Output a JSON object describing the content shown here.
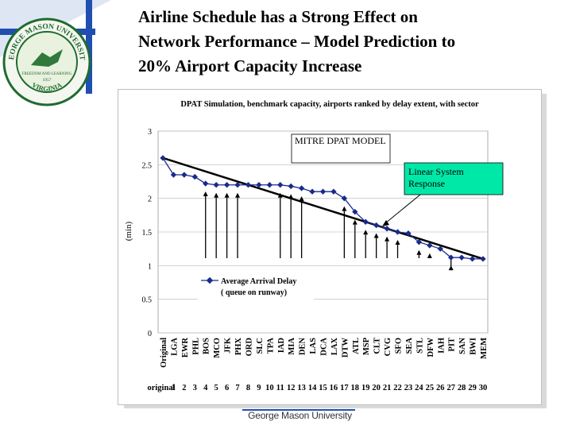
{
  "slide": {
    "title_line1": "Airline Schedule has a Strong Effect on",
    "title_line2": "Network Performance – Model Prediction to",
    "title_line3": "20% Airport Capacity Increase",
    "footer": "George Mason University"
  },
  "seal": {
    "top_text": "GEORGE MASON UNIVERSITY",
    "bottom_text": "VIRGINIA",
    "inner_text": "FREEDOM AND LEARNING",
    "year": "1957"
  },
  "colors": {
    "accent": "#1f4fb0",
    "series": "#1a2a8c",
    "callout_fill": "#00e8a8",
    "grid": "#c8c8c8"
  },
  "chart_data": {
    "type": "line",
    "title": "DPAT Simulation, benchmark capacity, airports ranked by delay extent, with sector",
    "ylabel": "(min)",
    "xlabel": "",
    "ylim": [
      0,
      3
    ],
    "yticks": [
      "0",
      "0.5",
      "1",
      "1.5",
      "2",
      "2.5",
      "3"
    ],
    "categories": [
      "Original",
      "LGA",
      "EWR",
      "PHL",
      "BOS",
      "MCO",
      "JFK",
      "PHX",
      "ORD",
      "SLC",
      "TPA",
      "IAD",
      "MIA",
      "DEN",
      "LAS",
      "DCA",
      "LAX",
      "DTW",
      "ATL",
      "MSP",
      "CLT",
      "CVG",
      "SFO",
      "SEA",
      "STL",
      "DFW",
      "IAH",
      "PIT",
      "SAN",
      "BWI",
      "MEM"
    ],
    "index_labels": [
      "original",
      "1",
      "2",
      "3",
      "4",
      "5",
      "6",
      "7",
      "8",
      "9",
      "10",
      "11",
      "12",
      "13",
      "14",
      "15",
      "16",
      "17",
      "18",
      "19",
      "20",
      "21",
      "22",
      "23",
      "24",
      "25",
      "26",
      "27",
      "28",
      "29",
      "30"
    ],
    "series": [
      {
        "name": "Average Arrival Delay ( queue on runway)",
        "legend_line1": "Average Arrival Delay",
        "legend_line2": "( queue on runway)",
        "values": [
          2.6,
          2.35,
          2.35,
          2.32,
          2.22,
          2.2,
          2.2,
          2.2,
          2.2,
          2.2,
          2.2,
          2.2,
          2.18,
          2.15,
          2.1,
          2.1,
          2.1,
          2.0,
          1.8,
          1.65,
          1.6,
          1.55,
          1.5,
          1.48,
          1.35,
          1.3,
          1.25,
          1.12,
          1.12,
          1.1,
          1.1
        ]
      }
    ],
    "linear_response": {
      "start": [
        0,
        2.6
      ],
      "end": [
        30,
        1.1
      ]
    },
    "arrows": [
      4,
      5,
      6,
      7,
      11,
      12,
      13,
      17,
      18,
      19,
      20,
      21,
      22,
      24,
      25,
      27
    ],
    "annotations": {
      "mitre": "MITRE DPAT MODEL",
      "linear_line1": "Linear System",
      "linear_line2": "Response"
    }
  }
}
